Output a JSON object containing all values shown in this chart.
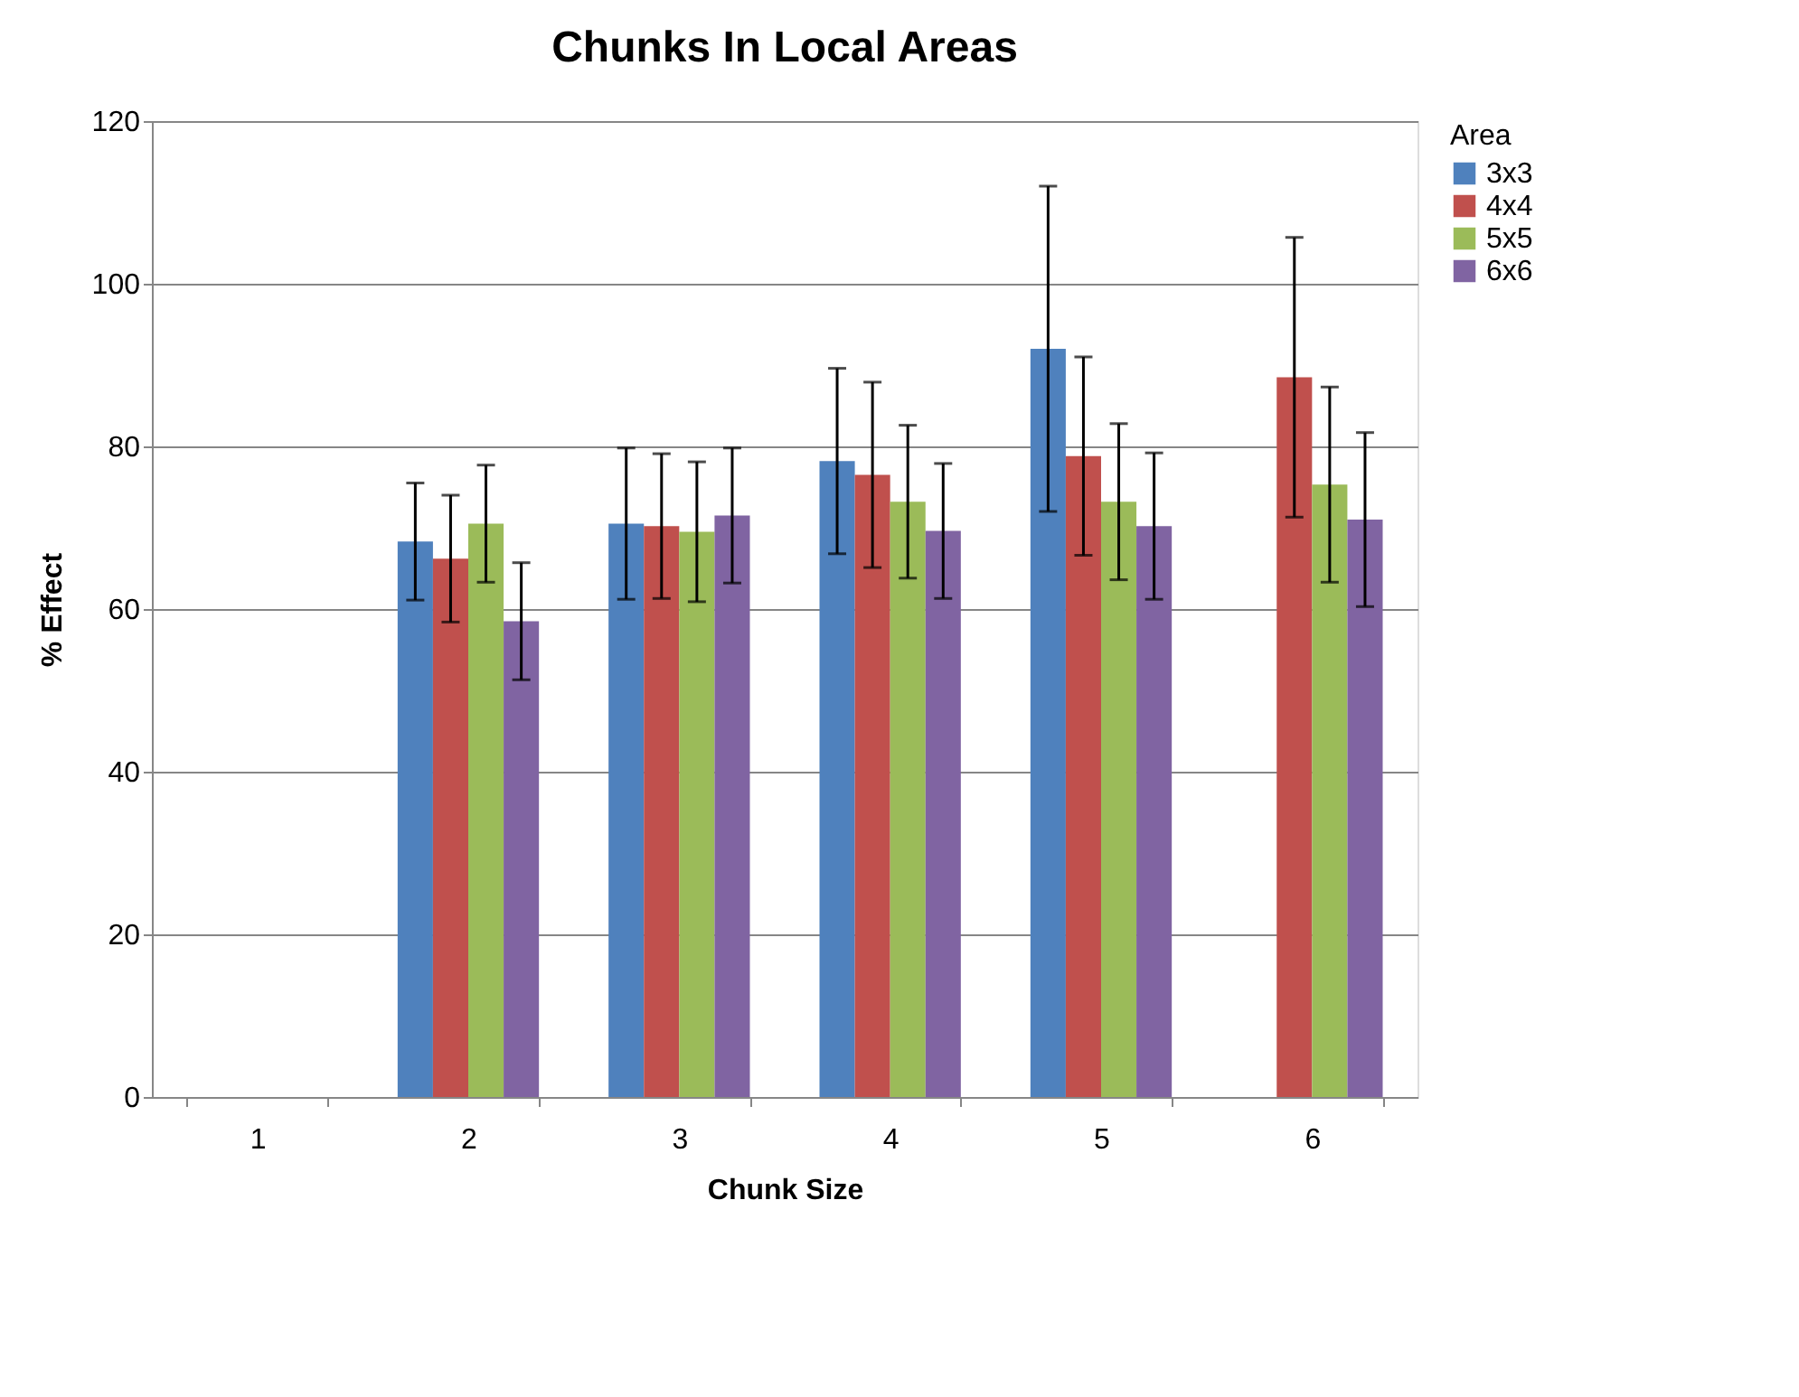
{
  "chart_data": {
    "type": "bar",
    "title": "Chunks In Local Areas",
    "xlabel": "Chunk Size",
    "ylabel": "% Effect",
    "legend_title": "Area",
    "legend": "right",
    "grid": "y",
    "categories": [
      "1",
      "2",
      "3",
      "4",
      "5",
      "6"
    ],
    "ylim": [
      0,
      120
    ],
    "yticks": [
      0,
      20,
      40,
      60,
      80,
      100,
      120
    ],
    "series": [
      {
        "name": "3x3",
        "color": "#4f81bd",
        "values": [
          0,
          68.3,
          70.5,
          78.2,
          92,
          null
        ],
        "errors": [
          null,
          7.2,
          9.3,
          11.4,
          20,
          null
        ]
      },
      {
        "name": "4x4",
        "color": "#c0504d",
        "values": [
          0,
          66.2,
          70.2,
          76.5,
          78.8,
          88.5
        ],
        "errors": [
          null,
          7.8,
          8.9,
          11.4,
          12.2,
          17.2
        ]
      },
      {
        "name": "5x5",
        "color": "#9bbb59",
        "values": [
          0,
          70.5,
          69.5,
          73.2,
          73.2,
          75.3
        ],
        "errors": [
          null,
          7.2,
          8.6,
          9.4,
          9.6,
          12
        ]
      },
      {
        "name": "6x6",
        "color": "#8064a2",
        "values": [
          0,
          58.5,
          71.5,
          69.6,
          70.2,
          71
        ],
        "errors": [
          null,
          7.2,
          8.3,
          8.3,
          9,
          10.7
        ]
      }
    ]
  }
}
